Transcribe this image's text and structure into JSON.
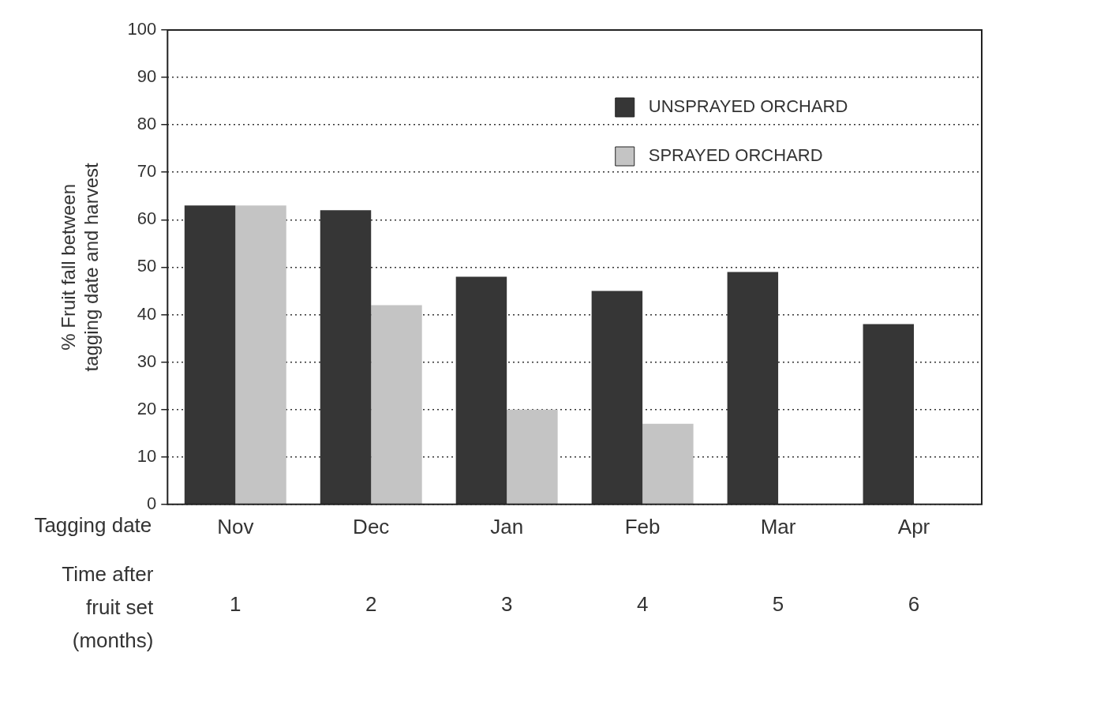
{
  "chart_data": {
    "type": "bar",
    "categories": [
      "Nov",
      "Dec",
      "Jan",
      "Feb",
      "Mar",
      "Apr"
    ],
    "series": [
      {
        "name": "UNSPRAYED ORCHARD",
        "color": "#363636",
        "values": [
          63,
          62,
          48,
          45,
          49,
          38
        ]
      },
      {
        "name": "SPRAYED ORCHARD",
        "color": "#c4c4c4",
        "values": [
          63,
          42,
          20,
          17,
          null,
          null
        ]
      }
    ],
    "xlabel": "Tagging date",
    "ylabel": "% Fruit fall between tagging date and harvest",
    "ylim": [
      0,
      100
    ],
    "yticks": [
      0,
      10,
      20,
      30,
      40,
      50,
      60,
      70,
      80,
      90,
      100
    ],
    "grid": "y",
    "legend": "top right",
    "annotations": [
      "Time after fruit set (months)",
      "1",
      "2",
      "3",
      "4",
      "5",
      "6"
    ]
  }
}
